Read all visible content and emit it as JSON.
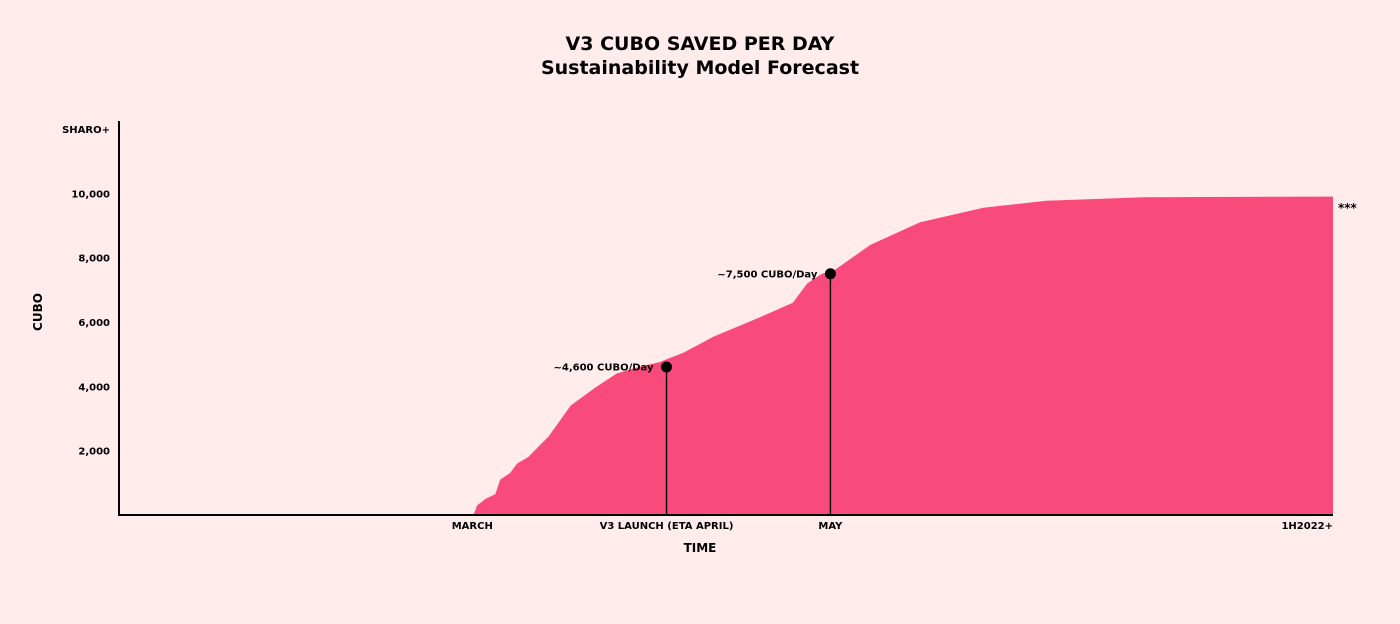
{
  "chart_data": {
    "type": "area",
    "title": "V3 CUBO SAVED PER DAY",
    "subtitle": "Sustainability Model Forecast",
    "xlabel": "TIME",
    "ylabel": "CUBO",
    "ylim": [
      0,
      12200
    ],
    "yticks": [
      {
        "value": 2000,
        "label": "2,000"
      },
      {
        "value": 4000,
        "label": "4,000"
      },
      {
        "value": 6000,
        "label": "6,000"
      },
      {
        "value": 8000,
        "label": "8,000"
      },
      {
        "value": 10000,
        "label": "10,000"
      },
      {
        "value": 12000,
        "label": "SHARO+"
      }
    ],
    "xticks": [
      {
        "t": 0.291,
        "label": "MARCH"
      },
      {
        "t": 0.451,
        "label": "V3 LAUNCH (ETA APRIL)"
      },
      {
        "t": 0.586,
        "label": "MAY"
      },
      {
        "t": 1.0,
        "label": "1H2022+"
      }
    ],
    "series": [
      {
        "color": "#f94a7c",
        "points": [
          [
            0,
            0
          ],
          [
            0.292,
            0
          ],
          [
            0.295,
            300
          ],
          [
            0.302,
            500
          ],
          [
            0.31,
            650
          ],
          [
            0.314,
            1100
          ],
          [
            0.322,
            1300
          ],
          [
            0.328,
            1600
          ],
          [
            0.337,
            1800
          ],
          [
            0.354,
            2450
          ],
          [
            0.372,
            3400
          ],
          [
            0.392,
            3950
          ],
          [
            0.41,
            4400
          ],
          [
            0.428,
            4600
          ],
          [
            0.445,
            4750
          ],
          [
            0.465,
            5050
          ],
          [
            0.49,
            5550
          ],
          [
            0.528,
            6150
          ],
          [
            0.555,
            6600
          ],
          [
            0.567,
            7200
          ],
          [
            0.579,
            7500
          ],
          [
            0.589,
            7600
          ],
          [
            0.619,
            8400
          ],
          [
            0.66,
            9100
          ],
          [
            0.712,
            9550
          ],
          [
            0.764,
            9770
          ],
          [
            0.846,
            9880
          ],
          [
            1.0,
            9900
          ]
        ]
      }
    ],
    "annotations": [
      {
        "t": 0.451,
        "value": 4600,
        "label": "~4,600 CUBO/Day"
      },
      {
        "t": 0.586,
        "value": 7500,
        "label": "~7,500 CUBO/Day"
      }
    ],
    "end_marker": "***",
    "grid": false
  }
}
